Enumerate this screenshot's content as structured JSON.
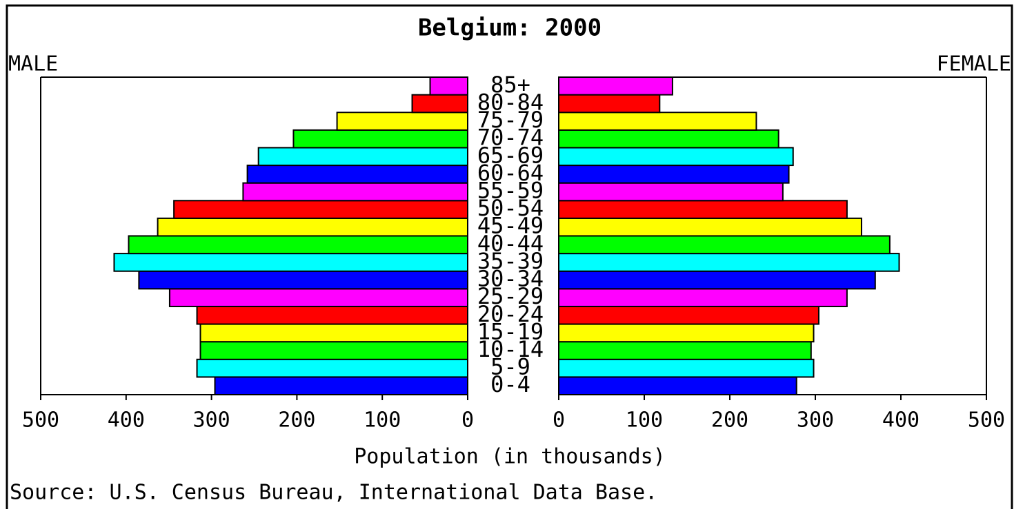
{
  "chart_data": {
    "type": "pyramid",
    "title": "Belgium: 2000",
    "xlabel": "Population (in thousands)",
    "source": "Source: U.S. Census Bureau, International Data Base.",
    "categories": [
      "0-4",
      "5-9",
      "10-14",
      "15-19",
      "20-24",
      "25-29",
      "30-34",
      "35-39",
      "40-44",
      "45-49",
      "50-54",
      "55-59",
      "60-64",
      "65-69",
      "70-74",
      "75-79",
      "80-84",
      "85+"
    ],
    "series": [
      {
        "name": "MALE",
        "values": [
          296,
          317,
          313,
          313,
          317,
          349,
          385,
          414,
          397,
          363,
          344,
          263,
          258,
          245,
          204,
          153,
          65,
          44
        ]
      },
      {
        "name": "FEMALE",
        "values": [
          278,
          298,
          295,
          298,
          304,
          337,
          370,
          398,
          387,
          354,
          337,
          262,
          269,
          274,
          257,
          231,
          118,
          133
        ]
      }
    ],
    "colors": [
      "#0000ff",
      "#00ffff",
      "#00ff00",
      "#ffff00",
      "#ff0000",
      "#ff00ff"
    ],
    "xlim": [
      0,
      500
    ],
    "xticks": [
      0,
      100,
      200,
      300,
      400,
      500
    ]
  }
}
